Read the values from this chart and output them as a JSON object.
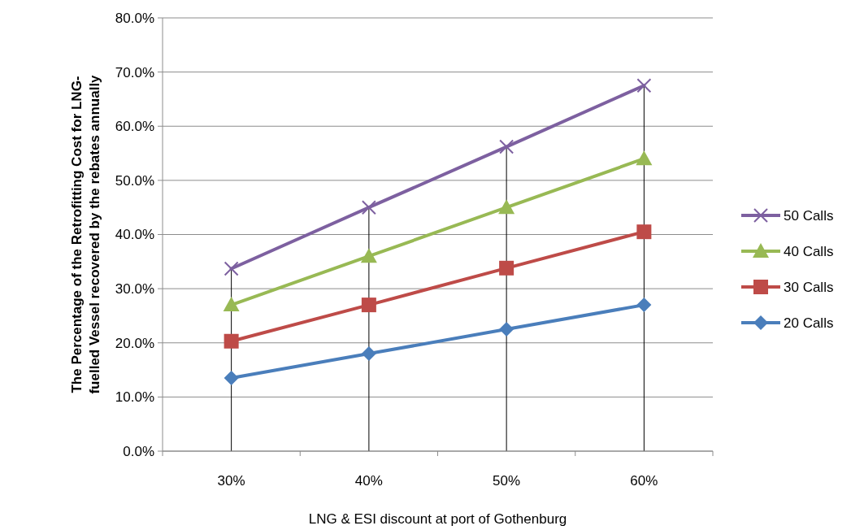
{
  "chart_data": {
    "type": "line",
    "xlabel": "LNG & ESI  discount at port of Gothenburg",
    "ylabel": "The Percentage of the Retrofitting Cost for LNG-fuelled Vessel recovered by the rebates annually",
    "categories": [
      "30%",
      "40%",
      "50%",
      "60%"
    ],
    "series": [
      {
        "name": "20 Calls",
        "color": "#4a7ebb",
        "marker": "diamond",
        "values": [
          13.5,
          18,
          22.5,
          27
        ]
      },
      {
        "name": "30 Calls",
        "color": "#be4b48",
        "marker": "square",
        "values": [
          20.3,
          27,
          33.8,
          40.5
        ]
      },
      {
        "name": "40 Calls",
        "color": "#98b954",
        "marker": "triangle",
        "values": [
          27,
          36,
          45,
          54
        ]
      },
      {
        "name": "50 Calls",
        "color": "#7d60a0",
        "marker": "cross",
        "values": [
          33.7,
          45,
          56.2,
          67.5
        ]
      }
    ],
    "ylim": [
      0,
      80
    ],
    "yticks": [
      {
        "value": 0,
        "label": "0.0%"
      },
      {
        "value": 10,
        "label": "10.0%"
      },
      {
        "value": 20,
        "label": "20.0%"
      },
      {
        "value": 30,
        "label": "30.0%"
      },
      {
        "value": 40,
        "label": "40.0%"
      },
      {
        "value": 50,
        "label": "50.0%"
      },
      {
        "value": 60,
        "label": "60.0%"
      },
      {
        "value": 70,
        "label": "70.0%"
      },
      {
        "value": 80,
        "label": "80.0%"
      }
    ],
    "ref_lines": [
      {
        "axis": "x",
        "value": "30%",
        "color": "#000000"
      },
      {
        "axis": "x",
        "value": "40%",
        "color": "#000000"
      },
      {
        "axis": "x",
        "value": "50%",
        "color": "#000000"
      },
      {
        "axis": "x",
        "value": "60%",
        "color": "#000000"
      }
    ],
    "grid": "y",
    "legend": "right",
    "line_style": "solid"
  }
}
